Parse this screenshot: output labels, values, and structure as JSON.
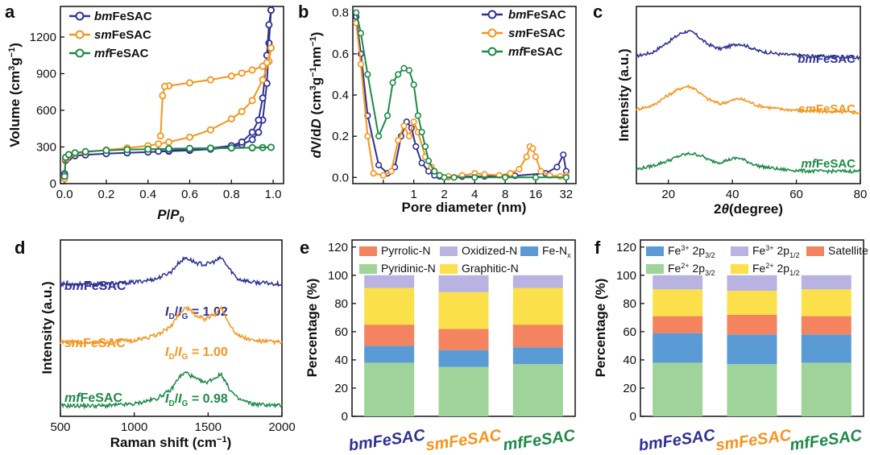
{
  "colors": {
    "bm": "#2e3192",
    "sm": "#f7941d",
    "mf": "#1d8a47",
    "pyrrolic": "#f4845f",
    "oxidized": "#b8b3e0",
    "fen": "#5b9bd5",
    "pyridinic": "#9fd39a",
    "graphitic": "#fbe04c",
    "fe3": "#5b9bd5",
    "fe3b": "#b8b3e0",
    "sat": "#f4845f",
    "fe2": "#9fd39a",
    "fe2b": "#fbe04c"
  },
  "chart_data": [
    {
      "id": "a",
      "panel_label": "a",
      "type": "line",
      "xlabel_main": "P",
      "xlabel_slash": "/",
      "xlabel_p": "P",
      "xlabel_sub": "0",
      "ylabel_main": "Volume (cm",
      "ylabel_sup1": "3",
      "ylabel_mid": "g",
      "ylabel_sup2": "−1",
      "ylabel_end": ")",
      "xlim": [
        -0.02,
        1.05
      ],
      "ylim": [
        0,
        1450
      ],
      "xticks": [
        0.0,
        0.2,
        0.4,
        0.6,
        0.8,
        1.0
      ],
      "xtick_labels": [
        "0.0",
        "0.2",
        "0.4",
        "0.6",
        "0.8",
        "1.0"
      ],
      "yticks": [
        0,
        300,
        600,
        900,
        1200
      ],
      "ytick_labels": [
        "0",
        "300",
        "600",
        "900",
        "1200"
      ],
      "legend": [
        {
          "key": "bm",
          "prefix": "bm",
          "name": "FeSAC"
        },
        {
          "key": "sm",
          "prefix": "sm",
          "name": "FeSAC"
        },
        {
          "key": "mf",
          "prefix": "mf",
          "name": "FeSAC"
        }
      ],
      "series": [
        {
          "key": "bm",
          "name": "bmFeSAC adsorption",
          "x": [
            0.0,
            0.005,
            0.02,
            0.05,
            0.1,
            0.2,
            0.3,
            0.4,
            0.5,
            0.6,
            0.7,
            0.8,
            0.85,
            0.9,
            0.93,
            0.95,
            0.97,
            0.98,
            0.99
          ],
          "y": [
            80,
            190,
            215,
            228,
            235,
            245,
            252,
            258,
            265,
            272,
            282,
            300,
            320,
            360,
            420,
            520,
            820,
            1150,
            1420
          ]
        },
        {
          "key": "bm",
          "name": "bmFeSAC desorption",
          "x": [
            0.99,
            0.98,
            0.97,
            0.95,
            0.93,
            0.9,
            0.85,
            0.8,
            0.7,
            0.6,
            0.5,
            0.45
          ],
          "y": [
            1420,
            1300,
            1050,
            700,
            520,
            420,
            340,
            310,
            290,
            280,
            270,
            265
          ]
        },
        {
          "key": "sm",
          "name": "smFeSAC adsorption",
          "x": [
            0.0,
            0.005,
            0.02,
            0.05,
            0.1,
            0.2,
            0.3,
            0.4,
            0.45,
            0.5,
            0.6,
            0.7,
            0.8,
            0.85,
            0.9,
            0.95,
            0.98,
            0.99
          ],
          "y": [
            40,
            200,
            230,
            245,
            258,
            275,
            292,
            310,
            325,
            340,
            380,
            440,
            530,
            590,
            680,
            850,
            1000,
            1110
          ]
        },
        {
          "key": "sm",
          "name": "smFeSAC desorption",
          "x": [
            0.99,
            0.97,
            0.95,
            0.9,
            0.85,
            0.8,
            0.7,
            0.6,
            0.5,
            0.48,
            0.47,
            0.46
          ],
          "y": [
            1110,
            990,
            960,
            930,
            905,
            880,
            850,
            825,
            800,
            795,
            720,
            390
          ]
        },
        {
          "key": "mf",
          "name": "mfFeSAC adsorption",
          "x": [
            0.0,
            0.005,
            0.02,
            0.05,
            0.1,
            0.2,
            0.3,
            0.4,
            0.5,
            0.6,
            0.7,
            0.8,
            0.9,
            0.95,
            0.99
          ],
          "y": [
            60,
            215,
            238,
            252,
            262,
            272,
            278,
            282,
            285,
            287,
            289,
            291,
            293,
            295,
            297
          ]
        },
        {
          "key": "mf",
          "name": "mfFeSAC desorption",
          "x": [
            0.99,
            0.9,
            0.8,
            0.7,
            0.6,
            0.5
          ],
          "y": [
            297,
            294,
            292,
            290,
            288,
            286
          ]
        }
      ]
    },
    {
      "id": "b",
      "panel_label": "b",
      "type": "line",
      "xlabel": "Pore diameter (nm)",
      "ylabel_main": "dV/dD (cm",
      "ylabel_sup1": "3",
      "ylabel_mid": "g",
      "ylabel_sup2": "−1",
      "ylabel_mid2": "nm",
      "ylabel_sup3": "−1",
      "ylabel_end": ")",
      "xscale": "log2",
      "xlim": [
        0.25,
        40
      ],
      "ylim": [
        -0.03,
        0.83
      ],
      "xticks": [
        0.5,
        1,
        2,
        4,
        8,
        16,
        32
      ],
      "xtick_labels": [
        "",
        "1",
        "2",
        "4",
        "8",
        "16",
        "32"
      ],
      "yticks": [
        0.0,
        0.2,
        0.4,
        0.6,
        0.8
      ],
      "ytick_labels": [
        "0.0",
        "0.2",
        "0.4",
        "0.6",
        "0.8"
      ],
      "legend": [
        {
          "key": "bm",
          "prefix": "bm",
          "name": "FeSAC"
        },
        {
          "key": "sm",
          "prefix": "sm",
          "name": "FeSAC"
        },
        {
          "key": "mf",
          "prefix": "mf",
          "name": "FeSAC"
        }
      ],
      "series": [
        {
          "key": "bm",
          "x": [
            0.27,
            0.3,
            0.35,
            0.45,
            0.55,
            0.65,
            0.75,
            0.85,
            0.95,
            1.05,
            1.2,
            1.4,
            1.6,
            1.8,
            2.2,
            3,
            5,
            10,
            20,
            26,
            30,
            32
          ],
          "y": [
            0.78,
            0.6,
            0.3,
            0.06,
            0.02,
            0.05,
            0.2,
            0.27,
            0.24,
            0.15,
            0.07,
            0.03,
            0.01,
            0.005,
            0.003,
            0.004,
            0.005,
            0.008,
            0.02,
            0.05,
            0.11,
            0.03
          ]
        },
        {
          "key": "sm",
          "x": [
            0.27,
            0.3,
            0.35,
            0.4,
            0.5,
            0.6,
            0.7,
            0.8,
            0.9,
            1.0,
            1.1,
            1.3,
            1.5,
            1.8,
            2.2,
            3,
            4,
            5,
            7,
            9,
            11,
            13,
            14,
            15,
            16,
            18,
            22,
            28,
            32
          ],
          "y": [
            0.75,
            0.55,
            0.2,
            0.02,
            0.01,
            0.03,
            0.18,
            0.25,
            0.2,
            0.27,
            0.22,
            0.1,
            0.05,
            0.01,
            0.005,
            0.01,
            0.02,
            0.015,
            0.01,
            0.02,
            0.04,
            0.1,
            0.15,
            0.14,
            0.1,
            0.03,
            0.01,
            0.005,
            0.01
          ]
        },
        {
          "key": "mf",
          "x": [
            0.27,
            0.3,
            0.35,
            0.45,
            0.55,
            0.62,
            0.7,
            0.8,
            0.9,
            1.0,
            1.1,
            1.2,
            1.3,
            1.4,
            1.6,
            1.8,
            2,
            2.5,
            4,
            8,
            16,
            32
          ],
          "y": [
            0.8,
            0.7,
            0.5,
            0.2,
            0.3,
            0.46,
            0.5,
            0.53,
            0.52,
            0.45,
            0.3,
            0.22,
            0.15,
            0.08,
            0.03,
            0.01,
            0.0,
            0.0,
            0.0,
            0.0,
            0.0,
            0.0
          ]
        }
      ]
    },
    {
      "id": "c",
      "panel_label": "c",
      "type": "line",
      "xlabel_pre": "2",
      "xlabel_theta": "θ",
      "xlabel_post": "(degree)",
      "ylabel": "Intensity (a.u.)",
      "xlim": [
        10,
        80
      ],
      "ylim": [
        0,
        1
      ],
      "xticks": [
        20,
        40,
        60,
        80
      ],
      "xtick_labels": [
        "20",
        "40",
        "60",
        "80"
      ],
      "series": [
        {
          "key": "bm",
          "prefix": "bm",
          "name": "FeSAC",
          "offset": 0.72,
          "x": [
            10,
            15,
            20,
            24,
            26,
            28,
            32,
            36,
            40,
            42,
            44,
            48,
            55,
            65,
            80
          ],
          "y": [
            0.0,
            0.02,
            0.08,
            0.13,
            0.14,
            0.13,
            0.07,
            0.04,
            0.06,
            0.07,
            0.06,
            0.03,
            0.01,
            0.0,
            -0.01
          ]
        },
        {
          "key": "sm",
          "prefix": "sm",
          "name": "FeSAC",
          "offset": 0.42,
          "x": [
            10,
            15,
            20,
            24,
            26,
            28,
            32,
            36,
            40,
            42,
            44,
            48,
            55,
            65,
            80
          ],
          "y": [
            0.0,
            0.02,
            0.08,
            0.12,
            0.13,
            0.12,
            0.06,
            0.03,
            0.05,
            0.06,
            0.05,
            0.02,
            0.0,
            -0.01,
            -0.02
          ]
        },
        {
          "key": "mf",
          "prefix": "mf",
          "name": "FeSAC",
          "offset": 0.08,
          "x": [
            10,
            15,
            20,
            24,
            27,
            30,
            33,
            36,
            40,
            42,
            44,
            48,
            55,
            65,
            80
          ],
          "y": [
            0.0,
            0.02,
            0.05,
            0.08,
            0.09,
            0.08,
            0.05,
            0.04,
            0.06,
            0.065,
            0.05,
            0.02,
            0.0,
            -0.01,
            -0.01
          ]
        }
      ]
    },
    {
      "id": "d",
      "panel_label": "d",
      "type": "line",
      "xlabel_main": "Raman shift (cm",
      "xlabel_sup": "−1",
      "xlabel_end": ")",
      "ylabel": "Intensity (a.u.)",
      "xlim": [
        500,
        2000
      ],
      "ylim": [
        0,
        1
      ],
      "xticks": [
        500,
        1000,
        1500,
        2000
      ],
      "xtick_labels": [
        "500",
        "1000",
        "1500",
        "2000"
      ],
      "series": [
        {
          "key": "bm",
          "prefix": "bm",
          "name": "FeSAC",
          "ratio_label_i": "I",
          "ratio_d": "D",
          "ratio_g": "G",
          "ratio_value": "= 1.02",
          "offset": 0.75,
          "x": [
            500,
            800,
            1000,
            1150,
            1250,
            1300,
            1350,
            1420,
            1480,
            1550,
            1590,
            1640,
            1700,
            1800,
            2000
          ],
          "y": [
            0.0,
            0.0,
            0.01,
            0.03,
            0.07,
            0.12,
            0.15,
            0.12,
            0.11,
            0.13,
            0.15,
            0.09,
            0.03,
            0.01,
            0.0
          ]
        },
        {
          "key": "sm",
          "prefix": "sm",
          "name": "FeSAC",
          "ratio_label_i": "I",
          "ratio_d": "D",
          "ratio_g": "G",
          "ratio_value": "= 1.00",
          "offset": 0.42,
          "x": [
            500,
            800,
            1000,
            1150,
            1250,
            1300,
            1350,
            1420,
            1480,
            1550,
            1590,
            1640,
            1700,
            1800,
            2000
          ],
          "y": [
            0.0,
            0.0,
            0.01,
            0.04,
            0.09,
            0.16,
            0.2,
            0.15,
            0.13,
            0.16,
            0.2,
            0.11,
            0.04,
            0.01,
            0.0
          ]
        },
        {
          "key": "mf",
          "prefix": "mf",
          "name": "FeSAC",
          "ratio_label_i": "I",
          "ratio_d": "D",
          "ratio_g": "G",
          "ratio_value": "= 0.98",
          "offset": 0.06,
          "x": [
            500,
            800,
            1000,
            1150,
            1250,
            1300,
            1350,
            1420,
            1480,
            1550,
            1590,
            1640,
            1700,
            1800,
            2000
          ],
          "y": [
            0.0,
            0.0,
            0.01,
            0.04,
            0.09,
            0.16,
            0.19,
            0.15,
            0.13,
            0.16,
            0.18,
            0.1,
            0.04,
            0.01,
            0.0
          ]
        }
      ]
    },
    {
      "id": "e",
      "panel_label": "e",
      "type": "bar",
      "stacked": true,
      "ylabel": "Percentage (%)",
      "ylim": [
        0,
        125
      ],
      "yticks": [
        0,
        20,
        40,
        60,
        80,
        100,
        120
      ],
      "ytick_labels": [
        "0",
        "20",
        "40",
        "60",
        "80",
        "100",
        "120"
      ],
      "categories": [
        {
          "key": "bm",
          "prefix": "bm",
          "name": "FeSAC"
        },
        {
          "key": "sm",
          "prefix": "sm",
          "name": "FeSAC"
        },
        {
          "key": "mf",
          "prefix": "mf",
          "name": "FeSAC"
        }
      ],
      "legend": [
        {
          "key": "pyrrolic",
          "label": "Pyrrolic-N"
        },
        {
          "key": "oxidized",
          "label": "Oxidized-N"
        },
        {
          "key": "fen",
          "label": "Fe-N",
          "sub": "x"
        },
        {
          "key": "pyridinic",
          "label": "Pyridinic-N"
        },
        {
          "key": "graphitic",
          "label": "Graphitic-N"
        }
      ],
      "series": [
        {
          "key": "pyridinic",
          "name": "Pyridinic-N",
          "values": [
            38,
            35,
            37
          ]
        },
        {
          "key": "fen",
          "name": "Fe-Nx",
          "values": [
            12,
            12,
            12
          ]
        },
        {
          "key": "pyrrolic",
          "name": "Pyrrolic-N",
          "values": [
            15,
            15,
            16
          ]
        },
        {
          "key": "graphitic",
          "name": "Graphitic-N",
          "values": [
            26,
            26,
            26
          ]
        },
        {
          "key": "oxidized",
          "name": "Oxidized-N",
          "values": [
            9,
            12,
            9
          ]
        }
      ]
    },
    {
      "id": "f",
      "panel_label": "f",
      "type": "bar",
      "stacked": true,
      "ylabel": "Percentage (%)",
      "ylim": [
        0,
        125
      ],
      "yticks": [
        0,
        20,
        40,
        60,
        80,
        100,
        120
      ],
      "ytick_labels": [
        "0",
        "20",
        "40",
        "60",
        "80",
        "100",
        "120"
      ],
      "categories": [
        {
          "key": "bm",
          "prefix": "bm",
          "name": "FeSAC"
        },
        {
          "key": "sm",
          "prefix": "sm",
          "name": "FeSAC"
        },
        {
          "key": "mf",
          "prefix": "mf",
          "name": "FeSAC"
        }
      ],
      "legend": [
        {
          "key": "fe3",
          "label": "Fe",
          "sup": "3+",
          "rest": " 2p",
          "sub": "3/2"
        },
        {
          "key": "fe3b",
          "label": "Fe",
          "sup": "3+",
          "rest": " 2p",
          "sub": "1/2"
        },
        {
          "key": "sat",
          "label": "Satellite"
        },
        {
          "key": "fe2",
          "label": "Fe",
          "sup": "2+",
          "rest": " 2p",
          "sub": "3/2"
        },
        {
          "key": "fe2b",
          "label": "Fe",
          "sup": "2+",
          "rest": " 2p",
          "sub": "1/2"
        }
      ],
      "series": [
        {
          "key": "fe2",
          "name": "Fe2+ 2p3/2",
          "values": [
            38,
            37,
            38
          ]
        },
        {
          "key": "fe3",
          "name": "Fe3+ 2p3/2",
          "values": [
            21,
            21,
            20
          ]
        },
        {
          "key": "sat",
          "name": "Satellite",
          "values": [
            12,
            14,
            13
          ]
        },
        {
          "key": "fe2b",
          "name": "Fe2+ 2p1/2",
          "values": [
            19,
            17,
            19
          ]
        },
        {
          "key": "fe3b",
          "name": "Fe3+ 2p1/2",
          "values": [
            10,
            11,
            10
          ]
        }
      ]
    }
  ]
}
